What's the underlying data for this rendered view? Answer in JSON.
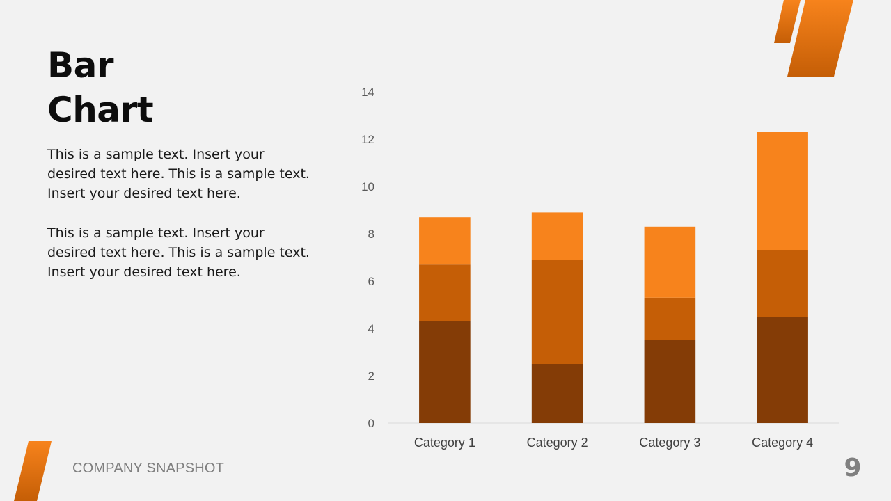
{
  "slide": {
    "title_line1": "Bar",
    "title_line2": "Chart",
    "paragraph1": "This is a sample text. Insert your desired text here. This is a sample text. Insert your desired text here.",
    "paragraph2": "This is a sample text. Insert your desired text here. This is a sample text. Insert your desired text here.",
    "footer": "COMPANY SNAPSHOT",
    "page_number": "9"
  },
  "colors": {
    "accent_light": "#f7831c",
    "accent_mid": "#c55e06",
    "accent_dark": "#843c06",
    "background": "#f2f2f2"
  },
  "chart_data": {
    "type": "bar",
    "stacked": true,
    "categories": [
      "Category 1",
      "Category 2",
      "Category 3",
      "Category 4"
    ],
    "series": [
      {
        "values": [
          4.3,
          2.5,
          3.5,
          4.5
        ],
        "color": "#843c06"
      },
      {
        "values": [
          2.4,
          4.4,
          1.8,
          2.8
        ],
        "color": "#c55e06"
      },
      {
        "values": [
          2.0,
          2.0,
          3.0,
          5.0
        ],
        "color": "#f7831c"
      }
    ],
    "ylim": [
      0,
      14
    ],
    "yticks": [
      0,
      2,
      4,
      6,
      8,
      10,
      12,
      14
    ],
    "grid": false,
    "legend": "none"
  }
}
